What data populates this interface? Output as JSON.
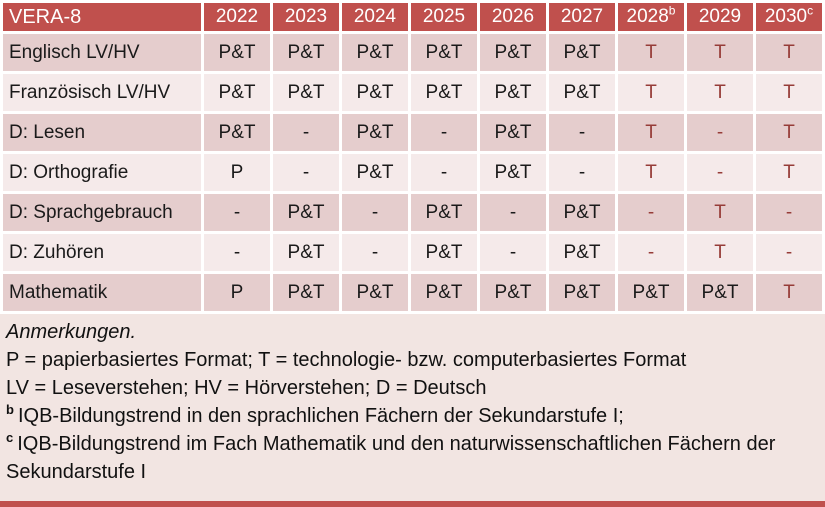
{
  "colors": {
    "header_bg": "#C0504D",
    "band_dark": "#E5CDCD",
    "band_light": "#F5EAEA",
    "notes_bg": "#F2E5E2",
    "tech_red": "#963C38",
    "bottom_bar": "#C0504D"
  },
  "table": {
    "title_cell": "VERA-8",
    "columns": [
      {
        "label": "2022",
        "sup": ""
      },
      {
        "label": "2023",
        "sup": ""
      },
      {
        "label": "2024",
        "sup": ""
      },
      {
        "label": "2025",
        "sup": ""
      },
      {
        "label": "2026",
        "sup": ""
      },
      {
        "label": "2027",
        "sup": ""
      },
      {
        "label": "2028",
        "sup": "b"
      },
      {
        "label": "2029",
        "sup": ""
      },
      {
        "label": "2030",
        "sup": "c"
      }
    ],
    "rows": [
      {
        "label": "Englisch LV/HV",
        "cells": [
          {
            "v": "P&T",
            "red": false
          },
          {
            "v": "P&T",
            "red": false
          },
          {
            "v": "P&T",
            "red": false
          },
          {
            "v": "P&T",
            "red": false
          },
          {
            "v": "P&T",
            "red": false
          },
          {
            "v": "P&T",
            "red": false
          },
          {
            "v": "T",
            "red": true
          },
          {
            "v": "T",
            "red": true
          },
          {
            "v": "T",
            "red": true
          }
        ]
      },
      {
        "label": "Französisch LV/HV",
        "cells": [
          {
            "v": "P&T",
            "red": false
          },
          {
            "v": "P&T",
            "red": false
          },
          {
            "v": "P&T",
            "red": false
          },
          {
            "v": "P&T",
            "red": false
          },
          {
            "v": "P&T",
            "red": false
          },
          {
            "v": "P&T",
            "red": false
          },
          {
            "v": "T",
            "red": true
          },
          {
            "v": "T",
            "red": true
          },
          {
            "v": "T",
            "red": true
          }
        ]
      },
      {
        "label": "D: Lesen",
        "cells": [
          {
            "v": "P&T",
            "red": false
          },
          {
            "v": "-",
            "red": false
          },
          {
            "v": "P&T",
            "red": false
          },
          {
            "v": "-",
            "red": false
          },
          {
            "v": "P&T",
            "red": false
          },
          {
            "v": "-",
            "red": false
          },
          {
            "v": "T",
            "red": true
          },
          {
            "v": "-",
            "red": true
          },
          {
            "v": "T",
            "red": true
          }
        ]
      },
      {
        "label": "D: Orthografie",
        "cells": [
          {
            "v": "P",
            "red": false
          },
          {
            "v": "-",
            "red": false
          },
          {
            "v": "P&T",
            "red": false
          },
          {
            "v": "-",
            "red": false
          },
          {
            "v": "P&T",
            "red": false
          },
          {
            "v": "-",
            "red": false
          },
          {
            "v": "T",
            "red": true
          },
          {
            "v": "-",
            "red": true
          },
          {
            "v": "T",
            "red": true
          }
        ]
      },
      {
        "label": "D: Sprachgebrauch",
        "cells": [
          {
            "v": "-",
            "red": false
          },
          {
            "v": "P&T",
            "red": false
          },
          {
            "v": "-",
            "red": false
          },
          {
            "v": "P&T",
            "red": false
          },
          {
            "v": "-",
            "red": false
          },
          {
            "v": "P&T",
            "red": false
          },
          {
            "v": "-",
            "red": true
          },
          {
            "v": "T",
            "red": true
          },
          {
            "v": "-",
            "red": true
          }
        ]
      },
      {
        "label": "D: Zuhören",
        "cells": [
          {
            "v": "-",
            "red": false
          },
          {
            "v": "P&T",
            "red": false
          },
          {
            "v": "-",
            "red": false
          },
          {
            "v": "P&T",
            "red": false
          },
          {
            "v": "-",
            "red": false
          },
          {
            "v": "P&T",
            "red": false
          },
          {
            "v": "-",
            "red": true
          },
          {
            "v": "T",
            "red": true
          },
          {
            "v": "-",
            "red": true
          }
        ]
      },
      {
        "label": "Mathematik",
        "cells": [
          {
            "v": "P",
            "red": false
          },
          {
            "v": "P&T",
            "red": false
          },
          {
            "v": "P&T",
            "red": false
          },
          {
            "v": "P&T",
            "red": false
          },
          {
            "v": "P&T",
            "red": false
          },
          {
            "v": "P&T",
            "red": false
          },
          {
            "v": "P&T",
            "red": false
          },
          {
            "v": "P&T",
            "red": false
          },
          {
            "v": "T",
            "red": true
          }
        ]
      }
    ]
  },
  "notes": {
    "title": "Anmerkungen.",
    "legend_formats": "P = papierbasiertes Format; T = technologie- bzw. computerbasiertes Format",
    "legend_abbreviations": "LV = Leseverstehen; HV = Hörverstehen; D = Deutsch",
    "footnote_b": {
      "marker": "b",
      "text": "IQB-Bildungstrend in den sprachlichen Fächern der Sekundarstufe I;"
    },
    "footnote_c": {
      "marker": "c",
      "text": "IQB-Bildungstrend im Fach Mathematik und den naturwissenschaftlichen Fächern der Sekundarstufe I"
    }
  }
}
